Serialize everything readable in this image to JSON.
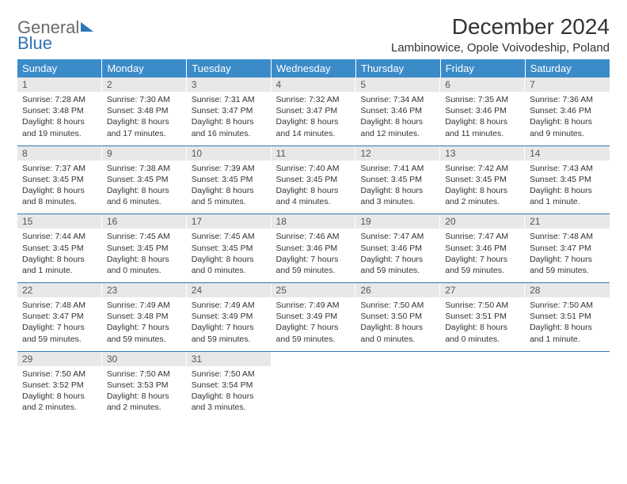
{
  "brand": {
    "line1": "General",
    "line2": "Blue"
  },
  "title": "December 2024",
  "location": "Lambinowice, Opole Voivodeship, Poland",
  "colors": {
    "header_bg": "#3b8bc9",
    "header_text": "#ffffff",
    "daynum_bg": "#e8e8e8",
    "row_border": "#2e75b6",
    "text": "#333333",
    "brand_gray": "#6b6b6b",
    "brand_blue": "#2e75b6",
    "page_bg": "#ffffff"
  },
  "typography": {
    "title_fontsize": 28,
    "location_fontsize": 15,
    "weekday_fontsize": 13,
    "daynum_fontsize": 12,
    "body_fontsize": 10.5
  },
  "weekdays": [
    "Sunday",
    "Monday",
    "Tuesday",
    "Wednesday",
    "Thursday",
    "Friday",
    "Saturday"
  ],
  "weeks": [
    [
      {
        "n": "1",
        "sr": "Sunrise: 7:28 AM",
        "ss": "Sunset: 3:48 PM",
        "dl": "Daylight: 8 hours and 19 minutes."
      },
      {
        "n": "2",
        "sr": "Sunrise: 7:30 AM",
        "ss": "Sunset: 3:48 PM",
        "dl": "Daylight: 8 hours and 17 minutes."
      },
      {
        "n": "3",
        "sr": "Sunrise: 7:31 AM",
        "ss": "Sunset: 3:47 PM",
        "dl": "Daylight: 8 hours and 16 minutes."
      },
      {
        "n": "4",
        "sr": "Sunrise: 7:32 AM",
        "ss": "Sunset: 3:47 PM",
        "dl": "Daylight: 8 hours and 14 minutes."
      },
      {
        "n": "5",
        "sr": "Sunrise: 7:34 AM",
        "ss": "Sunset: 3:46 PM",
        "dl": "Daylight: 8 hours and 12 minutes."
      },
      {
        "n": "6",
        "sr": "Sunrise: 7:35 AM",
        "ss": "Sunset: 3:46 PM",
        "dl": "Daylight: 8 hours and 11 minutes."
      },
      {
        "n": "7",
        "sr": "Sunrise: 7:36 AM",
        "ss": "Sunset: 3:46 PM",
        "dl": "Daylight: 8 hours and 9 minutes."
      }
    ],
    [
      {
        "n": "8",
        "sr": "Sunrise: 7:37 AM",
        "ss": "Sunset: 3:45 PM",
        "dl": "Daylight: 8 hours and 8 minutes."
      },
      {
        "n": "9",
        "sr": "Sunrise: 7:38 AM",
        "ss": "Sunset: 3:45 PM",
        "dl": "Daylight: 8 hours and 6 minutes."
      },
      {
        "n": "10",
        "sr": "Sunrise: 7:39 AM",
        "ss": "Sunset: 3:45 PM",
        "dl": "Daylight: 8 hours and 5 minutes."
      },
      {
        "n": "11",
        "sr": "Sunrise: 7:40 AM",
        "ss": "Sunset: 3:45 PM",
        "dl": "Daylight: 8 hours and 4 minutes."
      },
      {
        "n": "12",
        "sr": "Sunrise: 7:41 AM",
        "ss": "Sunset: 3:45 PM",
        "dl": "Daylight: 8 hours and 3 minutes."
      },
      {
        "n": "13",
        "sr": "Sunrise: 7:42 AM",
        "ss": "Sunset: 3:45 PM",
        "dl": "Daylight: 8 hours and 2 minutes."
      },
      {
        "n": "14",
        "sr": "Sunrise: 7:43 AM",
        "ss": "Sunset: 3:45 PM",
        "dl": "Daylight: 8 hours and 1 minute."
      }
    ],
    [
      {
        "n": "15",
        "sr": "Sunrise: 7:44 AM",
        "ss": "Sunset: 3:45 PM",
        "dl": "Daylight: 8 hours and 1 minute."
      },
      {
        "n": "16",
        "sr": "Sunrise: 7:45 AM",
        "ss": "Sunset: 3:45 PM",
        "dl": "Daylight: 8 hours and 0 minutes."
      },
      {
        "n": "17",
        "sr": "Sunrise: 7:45 AM",
        "ss": "Sunset: 3:45 PM",
        "dl": "Daylight: 8 hours and 0 minutes."
      },
      {
        "n": "18",
        "sr": "Sunrise: 7:46 AM",
        "ss": "Sunset: 3:46 PM",
        "dl": "Daylight: 7 hours and 59 minutes."
      },
      {
        "n": "19",
        "sr": "Sunrise: 7:47 AM",
        "ss": "Sunset: 3:46 PM",
        "dl": "Daylight: 7 hours and 59 minutes."
      },
      {
        "n": "20",
        "sr": "Sunrise: 7:47 AM",
        "ss": "Sunset: 3:46 PM",
        "dl": "Daylight: 7 hours and 59 minutes."
      },
      {
        "n": "21",
        "sr": "Sunrise: 7:48 AM",
        "ss": "Sunset: 3:47 PM",
        "dl": "Daylight: 7 hours and 59 minutes."
      }
    ],
    [
      {
        "n": "22",
        "sr": "Sunrise: 7:48 AM",
        "ss": "Sunset: 3:47 PM",
        "dl": "Daylight: 7 hours and 59 minutes."
      },
      {
        "n": "23",
        "sr": "Sunrise: 7:49 AM",
        "ss": "Sunset: 3:48 PM",
        "dl": "Daylight: 7 hours and 59 minutes."
      },
      {
        "n": "24",
        "sr": "Sunrise: 7:49 AM",
        "ss": "Sunset: 3:49 PM",
        "dl": "Daylight: 7 hours and 59 minutes."
      },
      {
        "n": "25",
        "sr": "Sunrise: 7:49 AM",
        "ss": "Sunset: 3:49 PM",
        "dl": "Daylight: 7 hours and 59 minutes."
      },
      {
        "n": "26",
        "sr": "Sunrise: 7:50 AM",
        "ss": "Sunset: 3:50 PM",
        "dl": "Daylight: 8 hours and 0 minutes."
      },
      {
        "n": "27",
        "sr": "Sunrise: 7:50 AM",
        "ss": "Sunset: 3:51 PM",
        "dl": "Daylight: 8 hours and 0 minutes."
      },
      {
        "n": "28",
        "sr": "Sunrise: 7:50 AM",
        "ss": "Sunset: 3:51 PM",
        "dl": "Daylight: 8 hours and 1 minute."
      }
    ],
    [
      {
        "n": "29",
        "sr": "Sunrise: 7:50 AM",
        "ss": "Sunset: 3:52 PM",
        "dl": "Daylight: 8 hours and 2 minutes."
      },
      {
        "n": "30",
        "sr": "Sunrise: 7:50 AM",
        "ss": "Sunset: 3:53 PM",
        "dl": "Daylight: 8 hours and 2 minutes."
      },
      {
        "n": "31",
        "sr": "Sunrise: 7:50 AM",
        "ss": "Sunset: 3:54 PM",
        "dl": "Daylight: 8 hours and 3 minutes."
      },
      {
        "empty": true
      },
      {
        "empty": true
      },
      {
        "empty": true
      },
      {
        "empty": true
      }
    ]
  ]
}
